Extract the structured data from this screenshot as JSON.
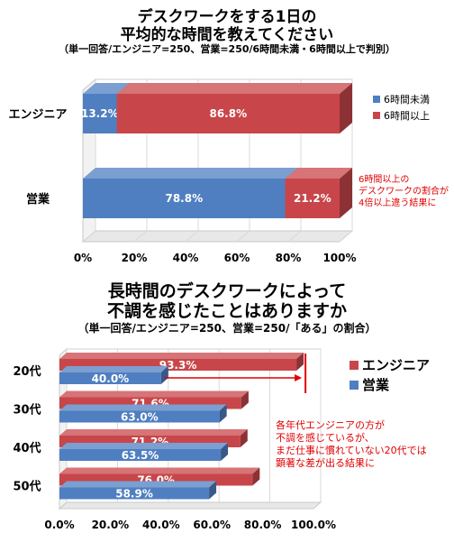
{
  "chart_data": [
    {
      "type": "bar",
      "title": "デスクワークをする1日の",
      "subtitle": "平均的な時間を教えてください",
      "note": "（単一回答/エンジニア=250、営業=250/6時間未満・6時間以上で判別）",
      "orientation": "horizontal",
      "stacked": true,
      "categories": [
        "エンジニア",
        "営業"
      ],
      "series": [
        {
          "name": "6時間未満",
          "values": [
            13.2,
            78.8
          ],
          "labels": [
            "13.2%",
            "78.8%"
          ],
          "color": "#4f7fc1"
        },
        {
          "name": "6時間以上",
          "values": [
            86.8,
            21.2
          ],
          "labels": [
            "86.8%",
            "21.2%"
          ],
          "color": "#c8464a"
        }
      ],
      "ticks": [
        "0%",
        "20%",
        "40%",
        "60%",
        "80%",
        "100%"
      ],
      "xlim": [
        0,
        100
      ],
      "legend": "right",
      "annotation": [
        "6時間以上の",
        "デスクワークの割合が",
        "4倍以上違う結果に"
      ]
    },
    {
      "type": "bar",
      "title": "長時間のデスクワークによって",
      "subtitle": "不調を感じたことはありますか",
      "note": "（単一回答/エンジニア=250、営業=250/「ある」の割合）",
      "orientation": "horizontal",
      "stacked": false,
      "categories": [
        "20代",
        "30代",
        "40代",
        "50代"
      ],
      "series": [
        {
          "name": "エンジニア",
          "values": [
            93.3,
            71.6,
            71.2,
            76.0
          ],
          "labels": [
            "93.3%",
            "71.6%",
            "71.2%",
            "76.0%"
          ],
          "color": "#c8464a"
        },
        {
          "name": "営業",
          "values": [
            40.0,
            63.0,
            63.5,
            58.9
          ],
          "labels": [
            "40.0%",
            "63.0%",
            "63.5%",
            "58.9%"
          ],
          "color": "#4f7fc1"
        }
      ],
      "ticks": [
        "0.0%",
        "20.0%",
        "40.0%",
        "60.0%",
        "80.0%",
        "100.0%"
      ],
      "xlim": [
        0,
        100
      ],
      "legend": "right",
      "annotation": [
        "各年代エンジニアの方が",
        "不調を感じているが、",
        "まだ仕事に慣れていない20代では",
        "顕著な差が出る結果に"
      ]
    }
  ]
}
